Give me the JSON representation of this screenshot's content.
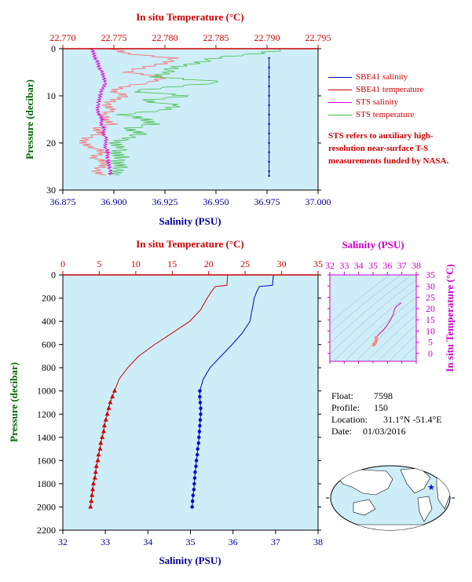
{
  "chart_data": [
    {
      "type": "line",
      "top_axis_label": "In situ Temperature (°C)",
      "top_ticks": [
        "22.770",
        "22.775",
        "22.780",
        "22.785",
        "22.790",
        "22.795"
      ],
      "xlabel": "Salinity (PSU)",
      "x_ticks": [
        "36.875",
        "36.900",
        "36.925",
        "36.950",
        "36.975",
        "37.000"
      ],
      "ylabel": "Pressure (decibar)",
      "y_ticks": [
        "0",
        "10",
        "20",
        "30"
      ],
      "xlim": [
        36.875,
        37.0
      ],
      "tlim": [
        22.77,
        22.795
      ],
      "ylim": [
        30,
        0
      ],
      "grid": false,
      "series": [
        {
          "name": "SBE41 salinity",
          "color": "#0000cc",
          "axis": "salinity",
          "p": [
            2,
            4,
            6,
            8,
            10,
            12,
            14,
            16,
            18,
            20,
            22,
            24,
            26,
            27
          ],
          "values": [
            36.976,
            36.976,
            36.976,
            36.976,
            36.976,
            36.976,
            36.976,
            36.976,
            36.976,
            36.976,
            36.976,
            36.976,
            36.976,
            36.976
          ]
        },
        {
          "name": "SBE41 temperature",
          "color": "#cc0000",
          "axis": "temperature",
          "p": [],
          "values": []
        },
        {
          "name": "STS salinity",
          "color": "#dd00dd",
          "axis": "salinity",
          "p": [
            0,
            1,
            2,
            3,
            4,
            5,
            6,
            7,
            8,
            9,
            10,
            11,
            12,
            13,
            14,
            15,
            16,
            17,
            18,
            19,
            20,
            21,
            22,
            23,
            24,
            25,
            26,
            27
          ],
          "values": [
            36.889,
            36.89,
            36.891,
            36.892,
            36.893,
            36.894,
            36.895,
            36.896,
            36.895,
            36.894,
            36.893,
            36.893,
            36.892,
            36.892,
            36.893,
            36.894,
            36.894,
            36.895,
            36.895,
            36.896,
            36.896,
            36.896,
            36.897,
            36.897,
            36.897,
            36.898,
            36.898,
            36.898
          ]
        },
        {
          "name": "STS temperature",
          "color": "#44bb44",
          "axis": "temperature",
          "p": [
            0,
            1,
            2,
            3,
            4,
            5,
            6,
            7,
            8,
            9,
            10,
            11,
            12,
            13,
            14,
            15,
            16,
            17,
            18,
            19,
            20,
            21,
            22,
            23,
            24,
            25,
            26,
            27
          ],
          "values": [
            22.792,
            22.789,
            22.785,
            22.783,
            22.781,
            22.78,
            22.779,
            22.786,
            22.781,
            22.777,
            22.782,
            22.778,
            22.781,
            22.78,
            22.776,
            22.778,
            22.779,
            22.776,
            22.778,
            22.776,
            22.775,
            22.776,
            22.775,
            22.776,
            22.775,
            22.776,
            22.775,
            22.775
          ]
        }
      ],
      "sbe_temperature_profile": {
        "p": [
          0,
          1,
          2,
          3,
          4,
          5,
          6,
          7,
          8,
          9,
          10,
          11,
          12,
          13,
          14,
          15,
          16,
          17,
          18,
          19,
          20,
          21,
          22,
          23,
          24,
          25,
          26,
          27
        ],
        "values": [
          22.775,
          22.776,
          22.781,
          22.78,
          22.778,
          22.776,
          22.78,
          22.779,
          22.776,
          22.775,
          22.776,
          22.775,
          22.774,
          22.775,
          22.774,
          22.774,
          22.775,
          22.773,
          22.774,
          22.772,
          22.772,
          22.773,
          22.774,
          22.773,
          22.774,
          22.774,
          22.773,
          22.774
        ]
      }
    },
    {
      "type": "line",
      "top_axis_label": "In situ Temperature (°C)",
      "top_ticks": [
        "0",
        "5",
        "10",
        "15",
        "20",
        "25",
        "30",
        "35"
      ],
      "xlabel": "Salinity (PSU)",
      "x_ticks": [
        "32",
        "33",
        "34",
        "35",
        "36",
        "37",
        "38"
      ],
      "ylabel": "Pressure (decibar)",
      "y_ticks": [
        "0",
        "200",
        "400",
        "600",
        "800",
        "1000",
        "1200",
        "1400",
        "1600",
        "1800",
        "2000",
        "2200"
      ],
      "xlim": [
        32,
        38
      ],
      "tlim": [
        0,
        35
      ],
      "ylim": [
        2200,
        0
      ],
      "grid": false,
      "series": [
        {
          "name": "Temperature",
          "color": "#cc0000",
          "marker": "triangle",
          "p": [
            0,
            90,
            100,
            150,
            200,
            300,
            400,
            500,
            600,
            700,
            800,
            900,
            1000,
            1050,
            1100,
            1150,
            1200,
            1250,
            1300,
            1350,
            1400,
            1450,
            1500,
            1550,
            1600,
            1650,
            1700,
            1750,
            1800,
            1850,
            1900,
            1950,
            2000
          ],
          "values": [
            22.6,
            22.5,
            20.9,
            20.3,
            19.8,
            18.9,
            17.4,
            15.0,
            12.6,
            10.4,
            8.9,
            7.7,
            7.1,
            6.8,
            6.5,
            6.3,
            6.1,
            5.9,
            5.7,
            5.6,
            5.4,
            5.2,
            5.1,
            4.9,
            4.8,
            4.6,
            4.5,
            4.4,
            4.2,
            4.1,
            4.0,
            3.9,
            3.8
          ]
        },
        {
          "name": "Salinity",
          "color": "#0000cc",
          "marker": "circle",
          "p": [
            0,
            90,
            100,
            150,
            200,
            300,
            400,
            500,
            600,
            700,
            800,
            900,
            1000,
            1050,
            1100,
            1150,
            1200,
            1250,
            1300,
            1350,
            1400,
            1450,
            1500,
            1550,
            1600,
            1650,
            1700,
            1750,
            1800,
            1850,
            1900,
            1950,
            2000
          ],
          "values": [
            36.95,
            36.93,
            36.62,
            36.55,
            36.5,
            36.45,
            36.4,
            36.22,
            35.98,
            35.72,
            35.46,
            35.3,
            35.22,
            35.22,
            35.23,
            35.24,
            35.24,
            35.23,
            35.22,
            35.21,
            35.2,
            35.19,
            35.17,
            35.16,
            35.14,
            35.13,
            35.11,
            35.1,
            35.09,
            35.08,
            35.06,
            35.05,
            35.04
          ]
        }
      ]
    },
    {
      "type": "scatter",
      "top_axis_label": "Salinity (PSU)",
      "top_ticks": [
        "32",
        "33",
        "34",
        "35",
        "36",
        "37",
        "38"
      ],
      "right_axis_label": "In situ Temperature (°C)",
      "right_ticks": [
        "0",
        "5",
        "10",
        "15",
        "20",
        "25",
        "30",
        "35"
      ],
      "xlim": [
        32,
        38
      ],
      "ylim": [
        0,
        35
      ],
      "series": [
        {
          "name": "T-S",
          "color": "#dd22bb",
          "x": [
            35.04,
            35.06,
            35.09,
            35.13,
            35.17,
            35.21,
            35.24,
            35.22,
            35.3,
            35.46,
            35.72,
            35.98,
            36.22,
            36.4,
            36.5,
            36.62,
            36.95
          ],
          "y": [
            3.8,
            4.0,
            4.2,
            4.6,
            5.1,
            5.6,
            6.1,
            7.1,
            7.7,
            8.9,
            10.4,
            12.6,
            15.0,
            17.4,
            19.8,
            20.9,
            22.6
          ]
        }
      ]
    }
  ],
  "legend": [
    {
      "label": "SBE41 salinity",
      "color": "#0000cc"
    },
    {
      "label": "SBE41 temperature",
      "color": "#cc0000"
    },
    {
      "label": "STS salinity",
      "color": "#dd00dd"
    },
    {
      "label": "STS temperature",
      "color": "#44bb44"
    }
  ],
  "note": "STS refers to auxiliary high-resolution near-surface T-S measurements funded by NASA.",
  "info": {
    "float_label": "Float:",
    "float_value": "7598",
    "profile_label": "Profile:",
    "profile_value": "150",
    "location_label": "Location:",
    "location_value": "31.1°N  -51.4°E",
    "date_label": "Date:",
    "date_value": "01/03/2016"
  },
  "colors": {
    "plot_bg": "#cdeef8",
    "temperature": "#cc0000",
    "salinity_axis": "#000099",
    "ts_axis": "#cc00cc",
    "pressure_axis": "#006600"
  }
}
